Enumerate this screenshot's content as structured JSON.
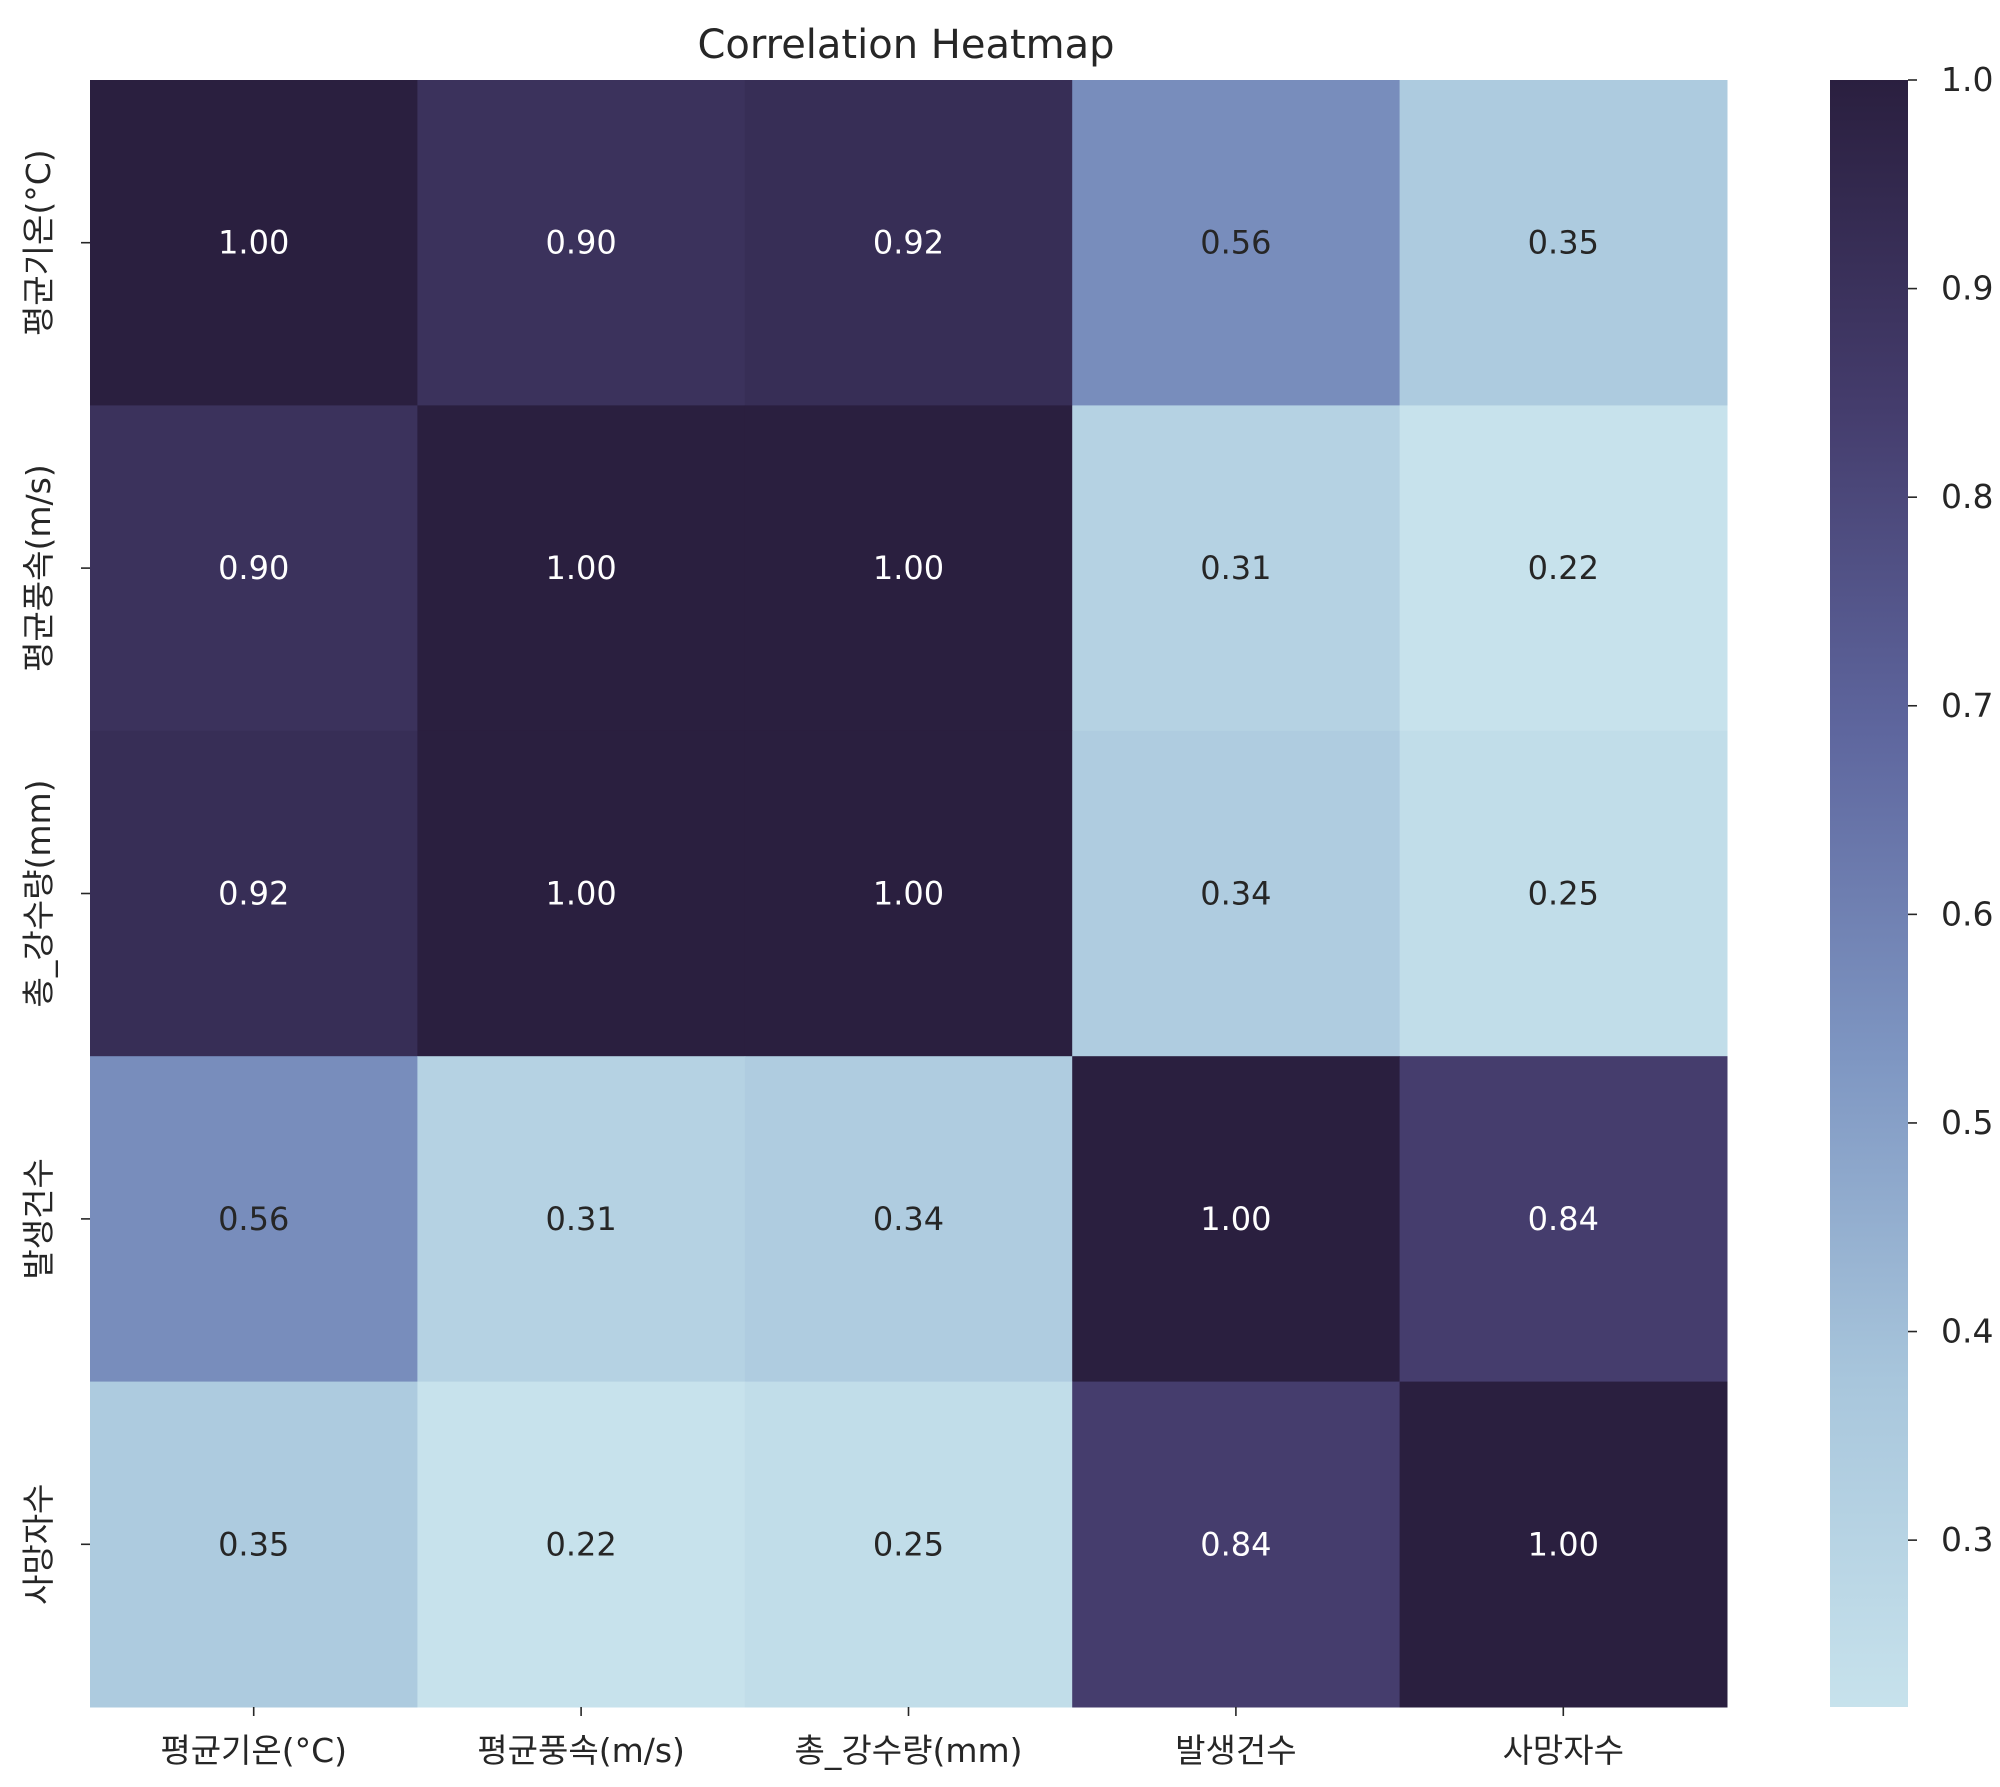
{
  "chart_data": {
    "type": "heatmap",
    "title": "Correlation Heatmap",
    "xlabel": "",
    "ylabel": "",
    "x_categories": [
      "평균기온(°C)",
      "평균풍속(m/s)",
      "총_강수량(mm)",
      "발생건수",
      "사망자수"
    ],
    "y_categories": [
      "평균기온(°C)",
      "평균풍속(m/s)",
      "총_강수량(mm)",
      "발생건수",
      "사망자수"
    ],
    "values": [
      [
        1.0,
        0.9,
        0.92,
        0.56,
        0.35
      ],
      [
        0.9,
        1.0,
        1.0,
        0.31,
        0.22
      ],
      [
        0.92,
        1.0,
        1.0,
        0.34,
        0.25
      ],
      [
        0.56,
        0.31,
        0.34,
        1.0,
        0.84
      ],
      [
        0.35,
        0.22,
        0.25,
        0.84,
        1.0
      ]
    ],
    "value_format": "0.00",
    "colorbar": {
      "range": [
        0.22,
        1.0
      ],
      "ticks": [
        0.3,
        0.4,
        0.5,
        0.6,
        0.7,
        0.8,
        0.9,
        1.0
      ],
      "tick_labels": [
        "0.3",
        "0.4",
        "0.5",
        "0.6",
        "0.7",
        "0.8",
        "0.9",
        "1.0"
      ]
    },
    "colormap": [
      "#c7e2ec",
      "#a8c6dc",
      "#7e96c2",
      "#5e669e",
      "#443c6c",
      "#2a1f3f"
    ],
    "annotation_colors": {
      "light": "#ffffff",
      "dark": "#262626"
    },
    "grid": false,
    "legend": "colorbar-right"
  }
}
